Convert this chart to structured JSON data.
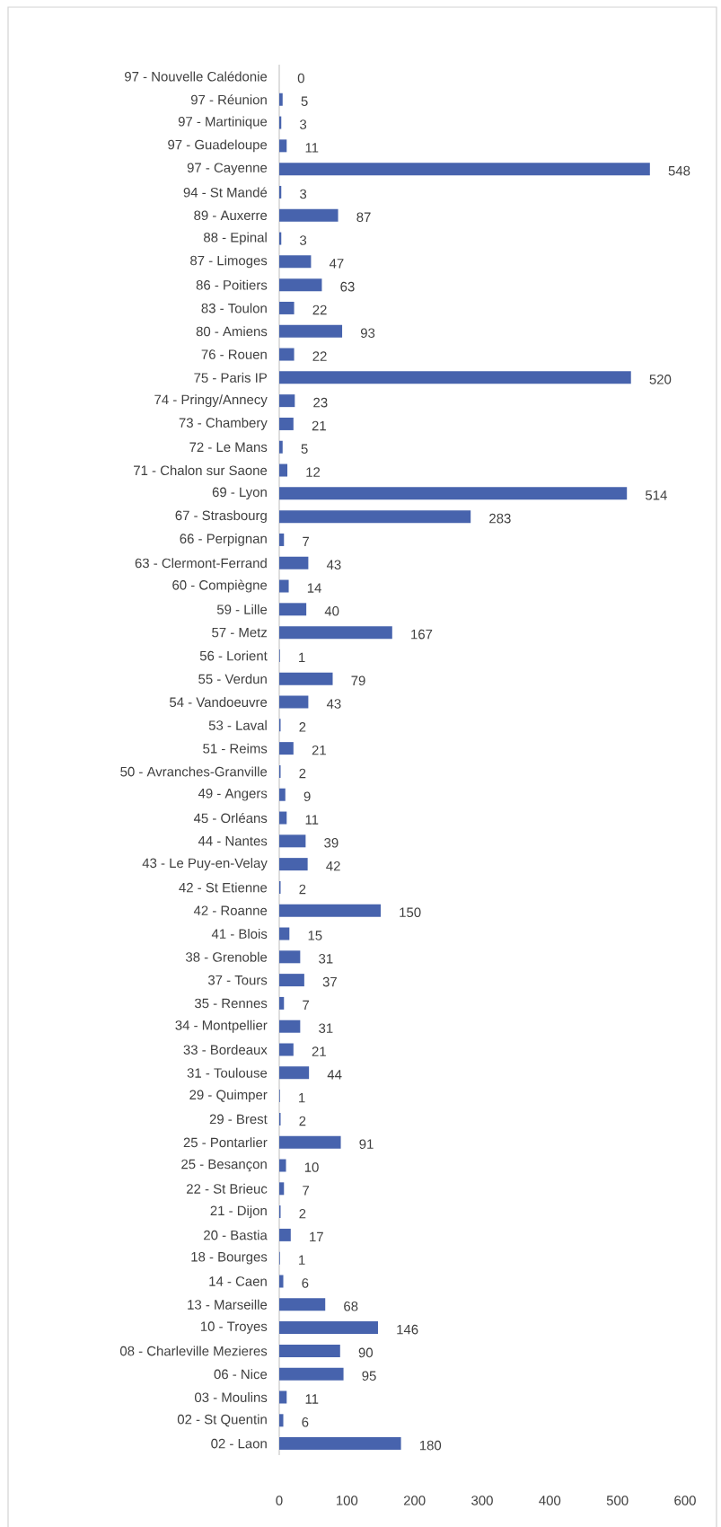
{
  "chart_data": {
    "type": "bar",
    "orientation": "horizontal",
    "categories": [
      "97 - Nouvelle Calédonie",
      "97 - Réunion",
      "97 - Martinique",
      "97 - Guadeloupe",
      "97 - Cayenne",
      "94 - St Mandé",
      "89 - Auxerre",
      "88 - Epinal",
      "87 - Limoges",
      "86 - Poitiers",
      "83 - Toulon",
      "80 - Amiens",
      "76 - Rouen",
      "75 - Paris IP",
      "74 - Pringy/Annecy",
      "73 - Chambery",
      "72 - Le Mans",
      "71 - Chalon sur Saone",
      "69 - Lyon",
      "67 - Strasbourg",
      "66 - Perpignan",
      "63 - Clermont-Ferrand",
      "60 - Compiègne",
      "59 - Lille",
      "57 - Metz",
      "56 - Lorient",
      "55 - Verdun",
      "54 - Vandoeuvre",
      "53 - Laval",
      "51 - Reims",
      "50 - Avranches-Granville",
      "49 - Angers",
      "45 - Orléans",
      "44 - Nantes",
      "43 - Le Puy-en-Velay",
      "42 - St Etienne",
      "42 - Roanne",
      "41 - Blois",
      "38 - Grenoble",
      "37 - Tours",
      "35 - Rennes",
      "34 - Montpellier",
      "33 - Bordeaux",
      "31 - Toulouse",
      "29 - Quimper",
      "29 - Brest",
      "25 - Pontarlier",
      "25 - Besançon",
      "22 - St Brieuc",
      "21 - Dijon",
      "20 - Bastia",
      "18 - Bourges",
      "14 - Caen",
      "13 - Marseille",
      "10 - Troyes",
      "08 - Charleville Mezieres",
      "06 - Nice",
      "03 - Moulins",
      "02 - St Quentin",
      "02 - Laon"
    ],
    "values": [
      0,
      5,
      3,
      11,
      548,
      3,
      87,
      3,
      47,
      63,
      22,
      93,
      22,
      520,
      23,
      21,
      5,
      12,
      514,
      283,
      7,
      43,
      14,
      40,
      167,
      1,
      79,
      43,
      2,
      21,
      2,
      9,
      11,
      39,
      42,
      2,
      150,
      15,
      31,
      37,
      7,
      31,
      21,
      44,
      1,
      2,
      91,
      10,
      7,
      2,
      17,
      1,
      6,
      68,
      146,
      90,
      95,
      11,
      6,
      180
    ],
    "color": "#4763ad",
    "data_labels": true,
    "xlim": [
      0,
      600
    ],
    "xticks": [
      0,
      100,
      200,
      300,
      400,
      500,
      600
    ]
  }
}
